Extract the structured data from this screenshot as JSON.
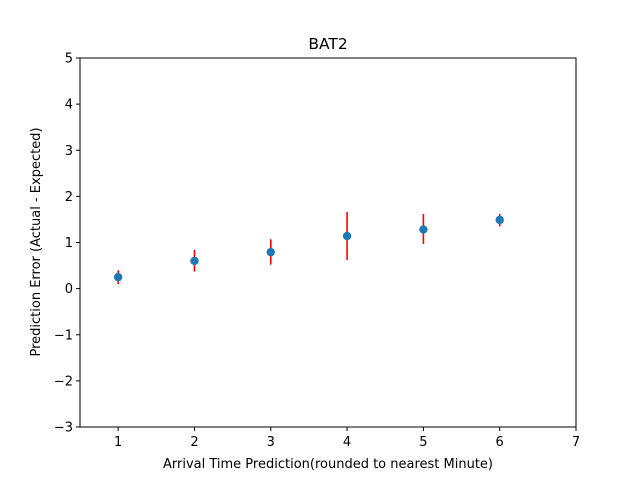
{
  "chart_data": {
    "type": "scatter",
    "title": "BAT2",
    "xlabel": "Arrival Time Prediction(rounded to nearest Minute)",
    "ylabel": "Prediction Error (Actual - Expected)",
    "xlim": [
      0.5,
      7
    ],
    "ylim": [
      -3,
      5
    ],
    "x_ticks": [
      1,
      2,
      3,
      4,
      5,
      6,
      7
    ],
    "y_ticks": [
      -3,
      -2,
      -1,
      0,
      1,
      2,
      3,
      4,
      5
    ],
    "grid": false,
    "point_color": "#1f77b4",
    "errorbar_color": "#ff0000",
    "points": [
      {
        "x": 1,
        "y": 0.25,
        "err_low": 0.1,
        "err_high": 0.4
      },
      {
        "x": 2,
        "y": 0.6,
        "err_low": 0.37,
        "err_high": 0.84
      },
      {
        "x": 3,
        "y": 0.79,
        "err_low": 0.52,
        "err_high": 1.07
      },
      {
        "x": 4,
        "y": 1.14,
        "err_low": 0.62,
        "err_high": 1.66
      },
      {
        "x": 5,
        "y": 1.28,
        "err_low": 0.97,
        "err_high": 1.62
      },
      {
        "x": 6,
        "y": 1.49,
        "err_low": 1.35,
        "err_high": 1.62
      }
    ]
  }
}
